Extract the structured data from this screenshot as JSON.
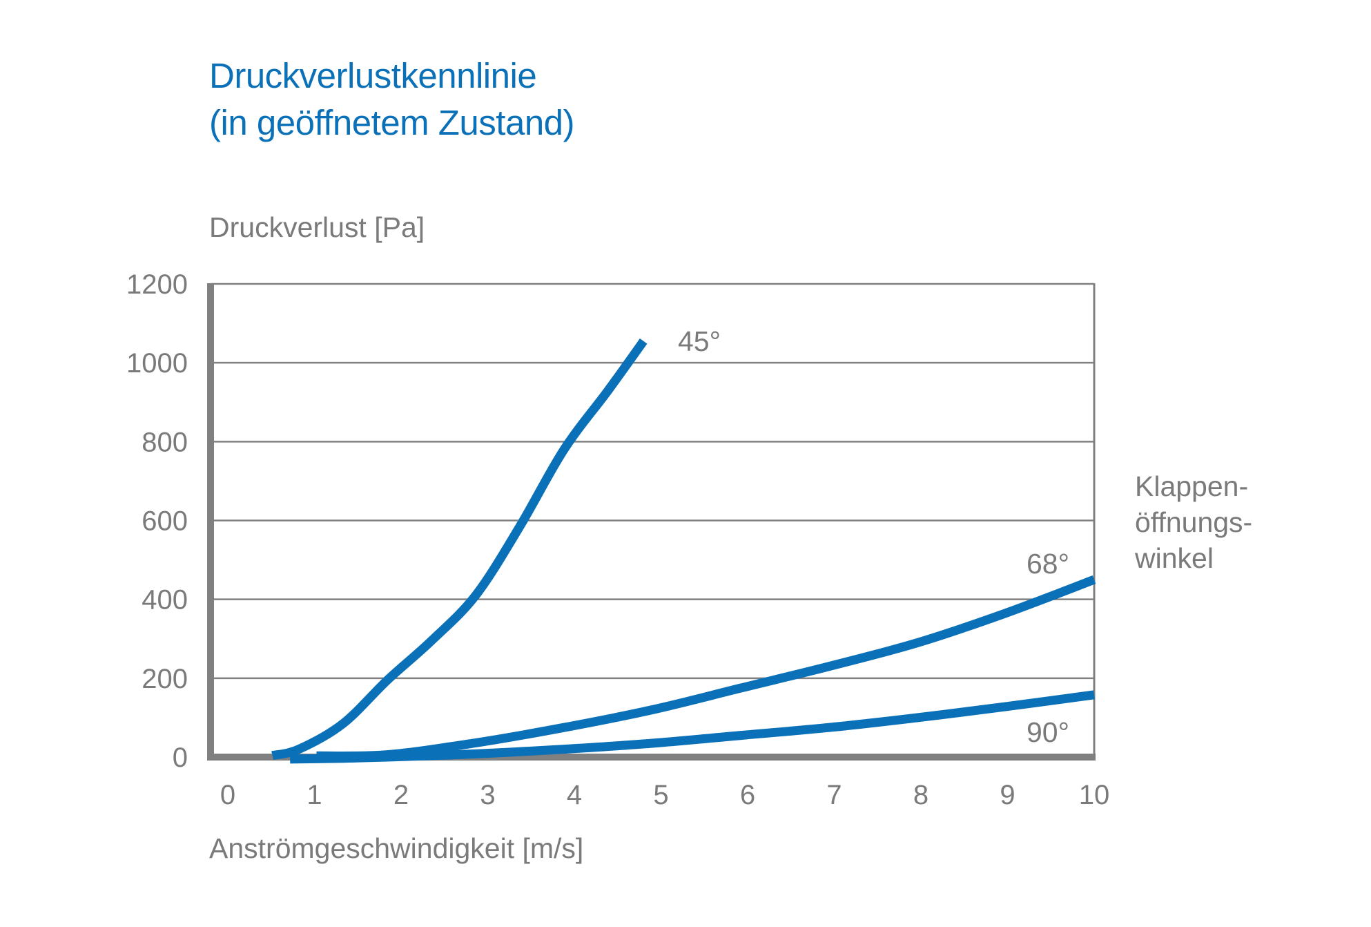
{
  "title": {
    "line1": "Druckverlustkennlinie",
    "line2": "(in geöffnetem Zustand)"
  },
  "colors": {
    "title": "#0a70b8",
    "series": "#0a70b8",
    "text": "#7a7a7a",
    "grid": "#808080"
  },
  "chart_data": {
    "type": "line",
    "ylabel": "Druckverlust [Pa]",
    "xlabel": "Anströmgeschwindigkeit [m/s]",
    "xlim": [
      0,
      10
    ],
    "ylim": [
      0,
      1200
    ],
    "x_ticks": [
      "0",
      "1",
      "2",
      "3",
      "4",
      "5",
      "6",
      "7",
      "8",
      "9",
      "10"
    ],
    "y_ticks": [
      "0",
      "200",
      "400",
      "600",
      "800",
      "1000",
      "1200"
    ],
    "grid": true,
    "legend_title": {
      "line1": "Klappen-",
      "line2": "öffnungs-",
      "line3": "winkel"
    },
    "series": [
      {
        "name": "45°",
        "x": [
          0.7,
          1,
          1.5,
          2,
          2.5,
          3,
          3.5,
          4,
          4.5,
          4.9
        ],
        "y": [
          4,
          20,
          85,
          195,
          295,
          410,
          585,
          780,
          930,
          1055
        ]
      },
      {
        "name": "68°",
        "x": [
          1.2,
          2,
          3,
          4,
          5,
          6,
          7,
          8,
          9,
          10
        ],
        "y": [
          3,
          6,
          36,
          75,
          120,
          175,
          230,
          290,
          365,
          450
        ]
      },
      {
        "name": "90°",
        "x": [
          0.9,
          1.5,
          2,
          3,
          4,
          5,
          6,
          7,
          8,
          9,
          10
        ],
        "y": [
          -5,
          -3,
          0,
          8,
          20,
          35,
          55,
          75,
          100,
          128,
          158
        ]
      }
    ]
  }
}
